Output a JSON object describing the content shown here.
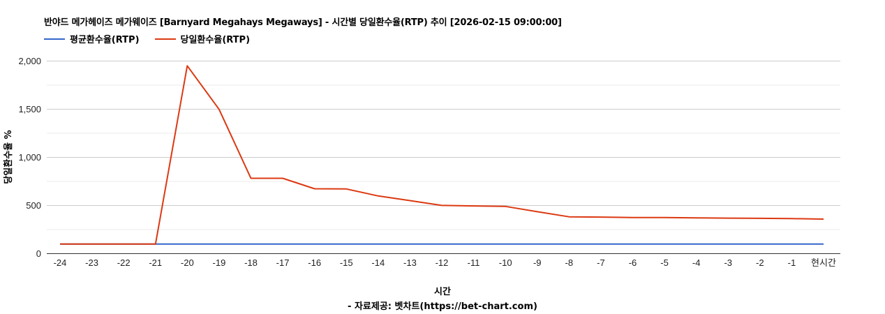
{
  "title": "반야드 메가헤이즈 메가웨이즈 [Barnyard Megahays Megaways] - 시간별 당일환수율(RTP) 추이 [2026-02-15 09:00:00]",
  "legend": [
    {
      "label": "평균환수율(RTP)",
      "color": "#3366cc"
    },
    {
      "label": "당일환수율(RTP)",
      "color": "#dc3912"
    }
  ],
  "footer": {
    "xlabel": "시간",
    "source": "- 자료제공: 벳차트(https://bet-chart.com)"
  },
  "chart_data": {
    "type": "line",
    "title": "반야드 메가헤이즈 메가웨이즈 [Barnyard Megahays Megaways] - 시간별 당일환수율(RTP) 추이 [2026-02-15 09:00:00]",
    "xlabel": "시간",
    "ylabel": "당일환수율 %",
    "categories": [
      "-24",
      "-23",
      "-22",
      "-21",
      "-20",
      "-19",
      "-18",
      "-17",
      "-16",
      "-15",
      "-14",
      "-13",
      "-12",
      "-11",
      "-10",
      "-9",
      "-8",
      "-7",
      "-6",
      "-5",
      "-4",
      "-3",
      "-2",
      "-1",
      "현시간"
    ],
    "series": [
      {
        "name": "평균환수율(RTP)",
        "color": "#3366cc",
        "values": [
          96,
          96,
          96,
          96,
          96,
          96,
          96,
          96,
          96,
          96,
          96,
          96,
          96,
          96,
          96,
          96,
          96,
          96,
          96,
          96,
          96,
          96,
          96,
          96,
          96
        ]
      },
      {
        "name": "당일환수율(RTP)",
        "color": "#dc3912",
        "values": [
          96,
          96,
          96,
          96,
          1947,
          1495,
          779,
          779,
          670,
          668,
          596,
          547,
          497,
          492,
          487,
          432,
          379,
          376,
          372,
          372,
          368,
          365,
          363,
          360,
          355
        ]
      }
    ],
    "yticks": [
      0,
      500,
      1000,
      1500,
      2000
    ],
    "ytick_labels": [
      "0",
      "500",
      "1,000",
      "1,500",
      "2,000"
    ],
    "ylim": [
      0,
      2000
    ],
    "grid": true,
    "minor_grid": [
      250,
      750,
      1250,
      1750
    ],
    "legend_position": "top"
  }
}
